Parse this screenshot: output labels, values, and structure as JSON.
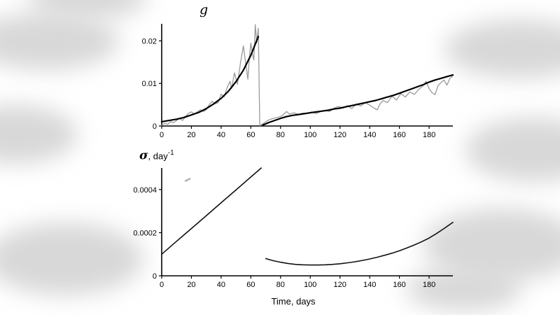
{
  "page": {
    "xlabel": "Time, days",
    "background_blob_color": "#d6d6d6",
    "axis_color": "#000000",
    "noisy_line_color": "#9a9a9a",
    "fit_line_color": "#000000"
  },
  "chart_data": [
    {
      "id": "g",
      "type": "line",
      "title": "g",
      "xlim": [
        0,
        196
      ],
      "ylim": [
        0,
        0.024
      ],
      "grid": false,
      "legend": "none",
      "xticks": [
        0,
        20,
        40,
        60,
        80,
        100,
        120,
        140,
        160,
        180
      ],
      "xtick_labels": [
        "0",
        "20",
        "40",
        "60",
        "80",
        "100",
        "120",
        "140",
        "160",
        "180"
      ],
      "yticks": [
        0,
        0.01,
        0.02
      ],
      "ytick_labels": [
        "0",
        "0.01",
        "0.02"
      ],
      "series": [
        {
          "name": "observed-noisy-g",
          "color": "#9a9a9a",
          "width": 1.3,
          "points": [
            [
              0,
              0.0002
            ],
            [
              2,
              0.0006
            ],
            [
              4,
              0.0004
            ],
            [
              6,
              0.001
            ],
            [
              8,
              0.0008
            ],
            [
              10,
              0.0013
            ],
            [
              12,
              0.0018
            ],
            [
              14,
              0.0013
            ],
            [
              16,
              0.0022
            ],
            [
              18,
              0.003
            ],
            [
              20,
              0.0033
            ],
            [
              22,
              0.0028
            ],
            [
              24,
              0.0033
            ],
            [
              26,
              0.0038
            ],
            [
              28,
              0.0034
            ],
            [
              30,
              0.0038
            ],
            [
              32,
              0.005
            ],
            [
              34,
              0.0058
            ],
            [
              36,
              0.0052
            ],
            [
              38,
              0.0055
            ],
            [
              40,
              0.0075
            ],
            [
              42,
              0.0068
            ],
            [
              44,
              0.009
            ],
            [
              46,
              0.0105
            ],
            [
              47,
              0.0088
            ],
            [
              49,
              0.0125
            ],
            [
              51,
              0.0098
            ],
            [
              53,
              0.0148
            ],
            [
              55,
              0.0188
            ],
            [
              56,
              0.016
            ],
            [
              57,
              0.0135
            ],
            [
              58,
              0.011
            ],
            [
              59,
              0.016
            ],
            [
              60,
              0.0195
            ],
            [
              61,
              0.017
            ],
            [
              62,
              0.0155
            ],
            [
              63,
              0.0238
            ],
            [
              64,
              0.0195
            ],
            [
              65,
              0.023
            ],
            [
              66,
              0.0001
            ],
            [
              68,
              0.0005
            ],
            [
              70,
              0.001
            ],
            [
              72,
              0.0014
            ],
            [
              75,
              0.0018
            ],
            [
              78,
              0.002
            ],
            [
              81,
              0.0024
            ],
            [
              84,
              0.0034
            ],
            [
              86,
              0.0028
            ],
            [
              89,
              0.0031
            ],
            [
              92,
              0.0027
            ],
            [
              95,
              0.003
            ],
            [
              98,
              0.0029
            ],
            [
              101,
              0.0033
            ],
            [
              104,
              0.0029
            ],
            [
              107,
              0.0034
            ],
            [
              110,
              0.0037
            ],
            [
              113,
              0.0034
            ],
            [
              116,
              0.0042
            ],
            [
              119,
              0.0046
            ],
            [
              122,
              0.0042
            ],
            [
              125,
              0.0048
            ],
            [
              128,
              0.0041
            ],
            [
              131,
              0.0052
            ],
            [
              134,
              0.0047
            ],
            [
              137,
              0.0055
            ],
            [
              140,
              0.0049
            ],
            [
              143,
              0.0042
            ],
            [
              145,
              0.0038
            ],
            [
              147,
              0.0052
            ],
            [
              149,
              0.006
            ],
            [
              152,
              0.0055
            ],
            [
              155,
              0.007
            ],
            [
              158,
              0.0061
            ],
            [
              161,
              0.0076
            ],
            [
              164,
              0.0068
            ],
            [
              167,
              0.008
            ],
            [
              170,
              0.0074
            ],
            [
              173,
              0.0086
            ],
            [
              176,
              0.0095
            ],
            [
              178,
              0.0105
            ],
            [
              180,
              0.0088
            ],
            [
              182,
              0.0078
            ],
            [
              184,
              0.0074
            ],
            [
              186,
              0.0095
            ],
            [
              188,
              0.0102
            ],
            [
              190,
              0.0108
            ],
            [
              192,
              0.0096
            ],
            [
              194,
              0.0112
            ],
            [
              196,
              0.0118
            ]
          ]
        },
        {
          "name": "model-fit-segment-1",
          "color": "#000000",
          "width": 2.2,
          "points": [
            [
              0,
              0.001
            ],
            [
              5,
              0.0013
            ],
            [
              10,
              0.0016
            ],
            [
              15,
              0.002
            ],
            [
              20,
              0.0026
            ],
            [
              25,
              0.0032
            ],
            [
              30,
              0.0041
            ],
            [
              35,
              0.0052
            ],
            [
              40,
              0.0065
            ],
            [
              45,
              0.0082
            ],
            [
              50,
              0.0104
            ],
            [
              55,
              0.0131
            ],
            [
              60,
              0.0166
            ],
            [
              65,
              0.021
            ]
          ]
        },
        {
          "name": "model-fit-segment-2",
          "color": "#000000",
          "width": 2.2,
          "points": [
            [
              68,
              0.0002
            ],
            [
              72,
              0.0008
            ],
            [
              76,
              0.0013
            ],
            [
              80,
              0.0018
            ],
            [
              84,
              0.0022
            ],
            [
              88,
              0.0025
            ],
            [
              92,
              0.0027
            ],
            [
              96,
              0.0029
            ],
            [
              100,
              0.0031
            ],
            [
              104,
              0.0033
            ],
            [
              108,
              0.0035
            ],
            [
              112,
              0.0037
            ],
            [
              116,
              0.004
            ],
            [
              120,
              0.0042
            ],
            [
              124,
              0.0045
            ],
            [
              128,
              0.0048
            ],
            [
              132,
              0.0051
            ],
            [
              136,
              0.0054
            ],
            [
              140,
              0.0057
            ],
            [
              144,
              0.006
            ],
            [
              148,
              0.0064
            ],
            [
              152,
              0.0068
            ],
            [
              156,
              0.0072
            ],
            [
              160,
              0.0077
            ],
            [
              164,
              0.0082
            ],
            [
              168,
              0.0087
            ],
            [
              172,
              0.0092
            ],
            [
              176,
              0.0097
            ],
            [
              180,
              0.0103
            ],
            [
              184,
              0.0108
            ],
            [
              188,
              0.0112
            ],
            [
              192,
              0.0116
            ],
            [
              196,
              0.012
            ]
          ]
        }
      ]
    },
    {
      "id": "sigma",
      "type": "line",
      "title_symbol": "σ",
      "title_unit": ", day",
      "title_exponent": "-1",
      "xlim": [
        0,
        196
      ],
      "ylim": [
        0,
        0.0005
      ],
      "grid": false,
      "legend": "none",
      "xticks": [
        0,
        20,
        40,
        60,
        80,
        100,
        120,
        140,
        160,
        180
      ],
      "xtick_labels": [
        "0",
        "20",
        "40",
        "60",
        "80",
        "100",
        "120",
        "140",
        "160",
        "180"
      ],
      "yticks": [
        0,
        0.0002,
        0.0004
      ],
      "ytick_labels": [
        "0",
        "0.0002",
        "0.0004"
      ],
      "series": [
        {
          "name": "sigma-segment-1",
          "color": "#111111",
          "width": 1.6,
          "points": [
            [
              0,
              0.0001
            ],
            [
              10,
              0.00016
            ],
            [
              20,
              0.000219
            ],
            [
              30,
              0.000279
            ],
            [
              40,
              0.000339
            ],
            [
              50,
              0.000398
            ],
            [
              60,
              0.000458
            ],
            [
              67,
              0.0005
            ]
          ]
        },
        {
          "name": "sigma-segment-2",
          "color": "#111111",
          "width": 1.6,
          "points": [
            [
              70,
              8e-05
            ],
            [
              75,
              7e-05
            ],
            [
              80,
              6.3e-05
            ],
            [
              85,
              5.7e-05
            ],
            [
              90,
              5.3e-05
            ],
            [
              95,
              5.1e-05
            ],
            [
              100,
              5e-05
            ],
            [
              105,
              5e-05
            ],
            [
              110,
              5.1e-05
            ],
            [
              115,
              5.3e-05
            ],
            [
              120,
              5.6e-05
            ],
            [
              125,
              6e-05
            ],
            [
              130,
              6.5e-05
            ],
            [
              135,
              7.1e-05
            ],
            [
              140,
              7.8e-05
            ],
            [
              145,
              8.6e-05
            ],
            [
              150,
              9.5e-05
            ],
            [
              155,
              0.000105
            ],
            [
              160,
              0.000116
            ],
            [
              165,
              0.000129
            ],
            [
              170,
              0.000143
            ],
            [
              175,
              0.000158
            ],
            [
              180,
              0.000175
            ],
            [
              185,
              0.000196
            ],
            [
              190,
              0.000219
            ],
            [
              196,
              0.000248
            ]
          ]
        },
        {
          "name": "stray-mark",
          "color": "#aaaaaa",
          "width": 2.2,
          "points": [
            [
              16,
              0.00044
            ],
            [
              19,
              0.00045
            ]
          ]
        }
      ]
    }
  ]
}
